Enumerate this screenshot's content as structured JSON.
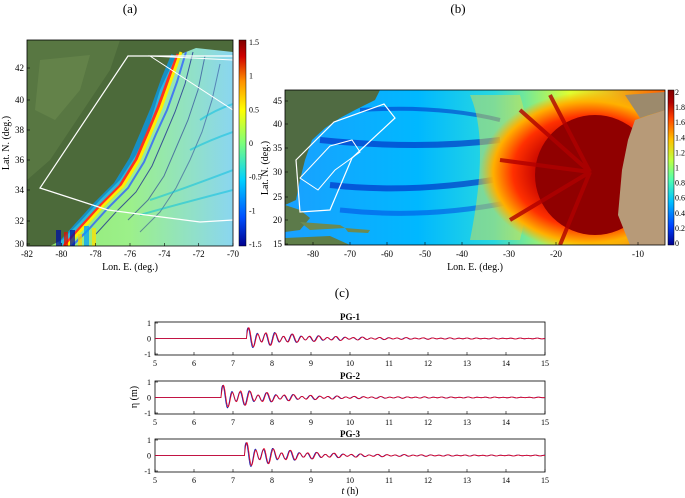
{
  "panels": {
    "a": {
      "label": "(a)",
      "xlabel": "Lon. E. (deg.)",
      "ylabel": "Lat. N. (deg.)",
      "xticks": [
        "-82",
        "-80",
        "-78",
        "-76",
        "-74",
        "-72",
        "-70"
      ],
      "yticks": [
        "42",
        "40",
        "38",
        "36",
        "34",
        "32",
        "30"
      ],
      "colorbar_ticks": [
        "1.5",
        "1",
        "0.5",
        "0",
        "-0.5",
        "-1",
        "-1.5"
      ]
    },
    "b": {
      "label": "(b)",
      "xlabel": "Lon. E. (deg.)",
      "ylabel": "Lat. N. (deg.)",
      "xticks": [
        "-80",
        "-70",
        "-60",
        "-50",
        "-40",
        "-30",
        "-20",
        "-10"
      ],
      "yticks": [
        "45",
        "40",
        "35",
        "30",
        "25",
        "20",
        "15"
      ],
      "colorbar_ticks": [
        "2",
        "1.8",
        "1.6",
        "1.4",
        "1.2",
        "1",
        "0.8",
        "0.6",
        "0.4",
        "0.2",
        "0"
      ]
    },
    "c": {
      "label": "(c)",
      "ylabel": "η (m)",
      "xlabel_italic": "t",
      "xlabel_unit": " (h)",
      "xticks": [
        "5",
        "6",
        "7",
        "8",
        "9",
        "10",
        "11",
        "12",
        "13",
        "14",
        "15"
      ],
      "yticks": [
        "1",
        "0",
        "-1"
      ],
      "gauges": [
        "PG-1",
        "PG-2",
        "PG-3"
      ]
    }
  },
  "colors": {
    "series_red": "#e8001c",
    "series_blue": "#1a1aa8",
    "colormap_a": [
      "#00008f",
      "#0050ff",
      "#00d0ff",
      "#7dff7a",
      "#ffff00",
      "#ff9000",
      "#d00000",
      "#800000"
    ],
    "colormap_b": [
      "#00008f",
      "#0040ff",
      "#00c0ff",
      "#50ffb0",
      "#c0ff40",
      "#ffc000",
      "#ff4000",
      "#b00000",
      "#800000"
    ]
  },
  "chart_data": {
    "type": "line",
    "x_range": [
      5,
      15
    ],
    "ylim": [
      -1,
      1
    ],
    "series_meaning": "three gauge time series (red and blue traces)"
  }
}
